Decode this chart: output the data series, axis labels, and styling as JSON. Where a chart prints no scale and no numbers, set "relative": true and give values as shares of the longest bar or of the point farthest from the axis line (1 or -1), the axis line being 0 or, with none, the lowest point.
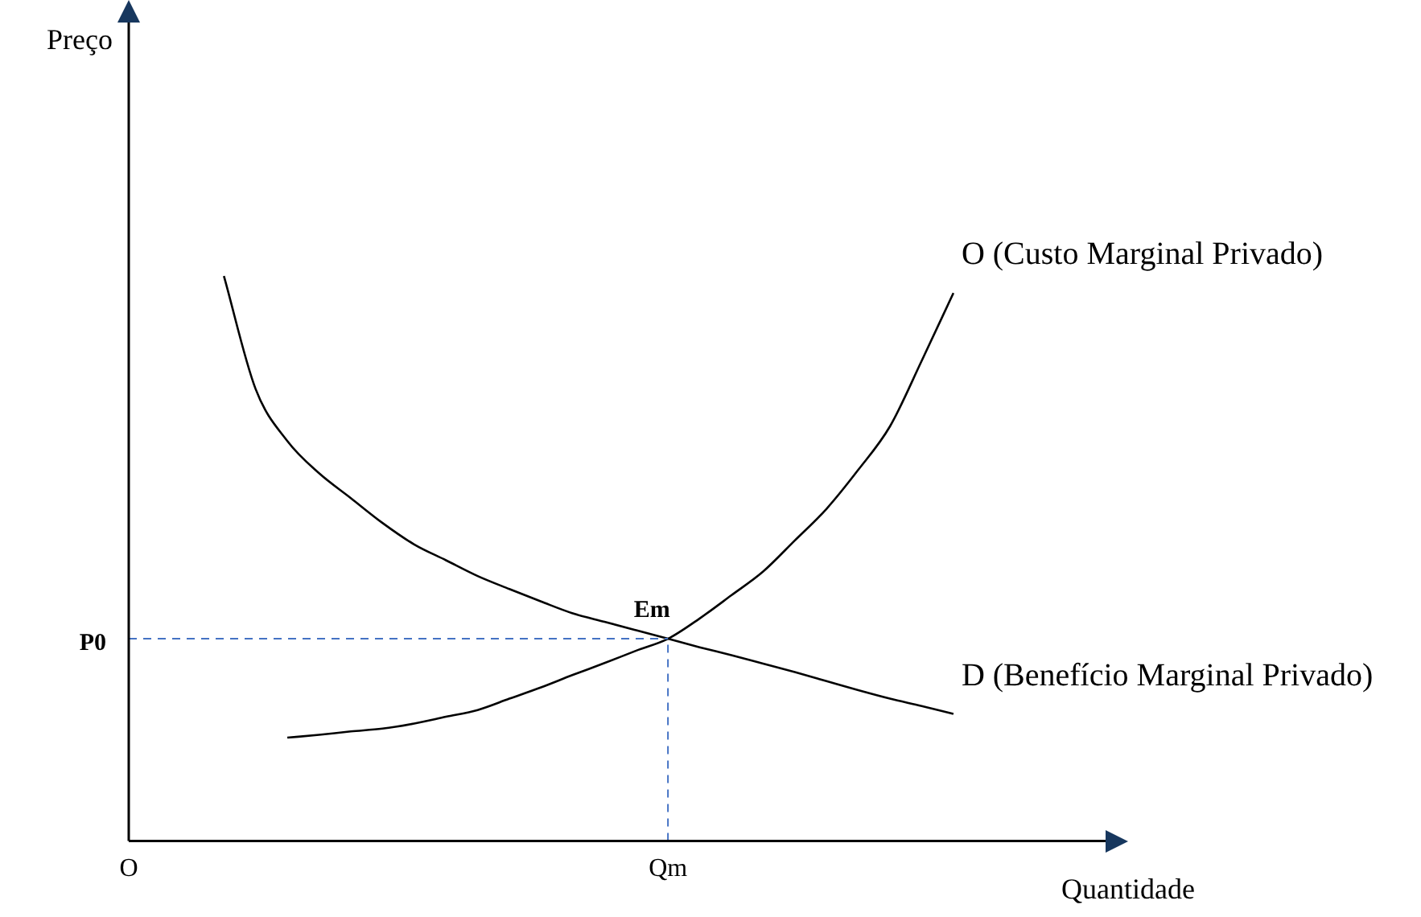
{
  "chart_data": {
    "type": "line",
    "relative": true,
    "xlabel": "Quantidade",
    "ylabel": "Preço",
    "ylim": [
      0,
      1.46
    ],
    "grid": false,
    "legend": false,
    "marker": "none",
    "line_style": "solid",
    "categories": [
      "O",
      null,
      null,
      null,
      null,
      null,
      null,
      null,
      null,
      null,
      null,
      null,
      null,
      null,
      null,
      null,
      null,
      "Qm",
      null,
      null,
      null,
      null,
      null,
      null,
      null,
      null,
      null,
      null,
      null,
      null,
      null,
      null
    ],
    "series": [
      {
        "name": "O (Custo Marginal Privado)",
        "color": "#000000",
        "values": [
          null,
          null,
          null,
          null,
          null,
          0.183,
          0.188,
          0.194,
          0.199,
          0.208,
          0.22,
          0.232,
          0.252,
          0.272,
          0.294,
          0.315,
          0.337,
          0.358,
          0.394,
          0.435,
          0.477,
          0.532,
          0.588,
          0.657,
          0.734,
          0.85,
          0.97,
          null,
          null,
          null,
          null,
          null
        ]
      },
      {
        "name": "D (Benefício Marginal Privado)",
        "color": "#000000",
        "values": [
          null,
          null,
          null,
          1.0,
          0.8,
          0.708,
          0.651,
          0.607,
          0.563,
          0.525,
          0.497,
          0.469,
          0.446,
          0.424,
          0.403,
          0.388,
          0.373,
          0.358,
          0.343,
          0.329,
          0.314,
          0.299,
          0.283,
          0.267,
          0.252,
          0.239,
          0.225,
          null,
          null,
          null,
          null,
          null
        ]
      }
    ],
    "ref_lines": [
      {
        "axis": "y",
        "value": 0.358,
        "label": "P0",
        "color": "#4472c4",
        "line_style": "dashed"
      },
      {
        "axis": "x",
        "value": "Qm",
        "color": "#4472c4",
        "line_style": "dashed"
      }
    ],
    "annotations": [
      {
        "text": "Em",
        "x": "Qm",
        "y": 0.358
      }
    ]
  }
}
